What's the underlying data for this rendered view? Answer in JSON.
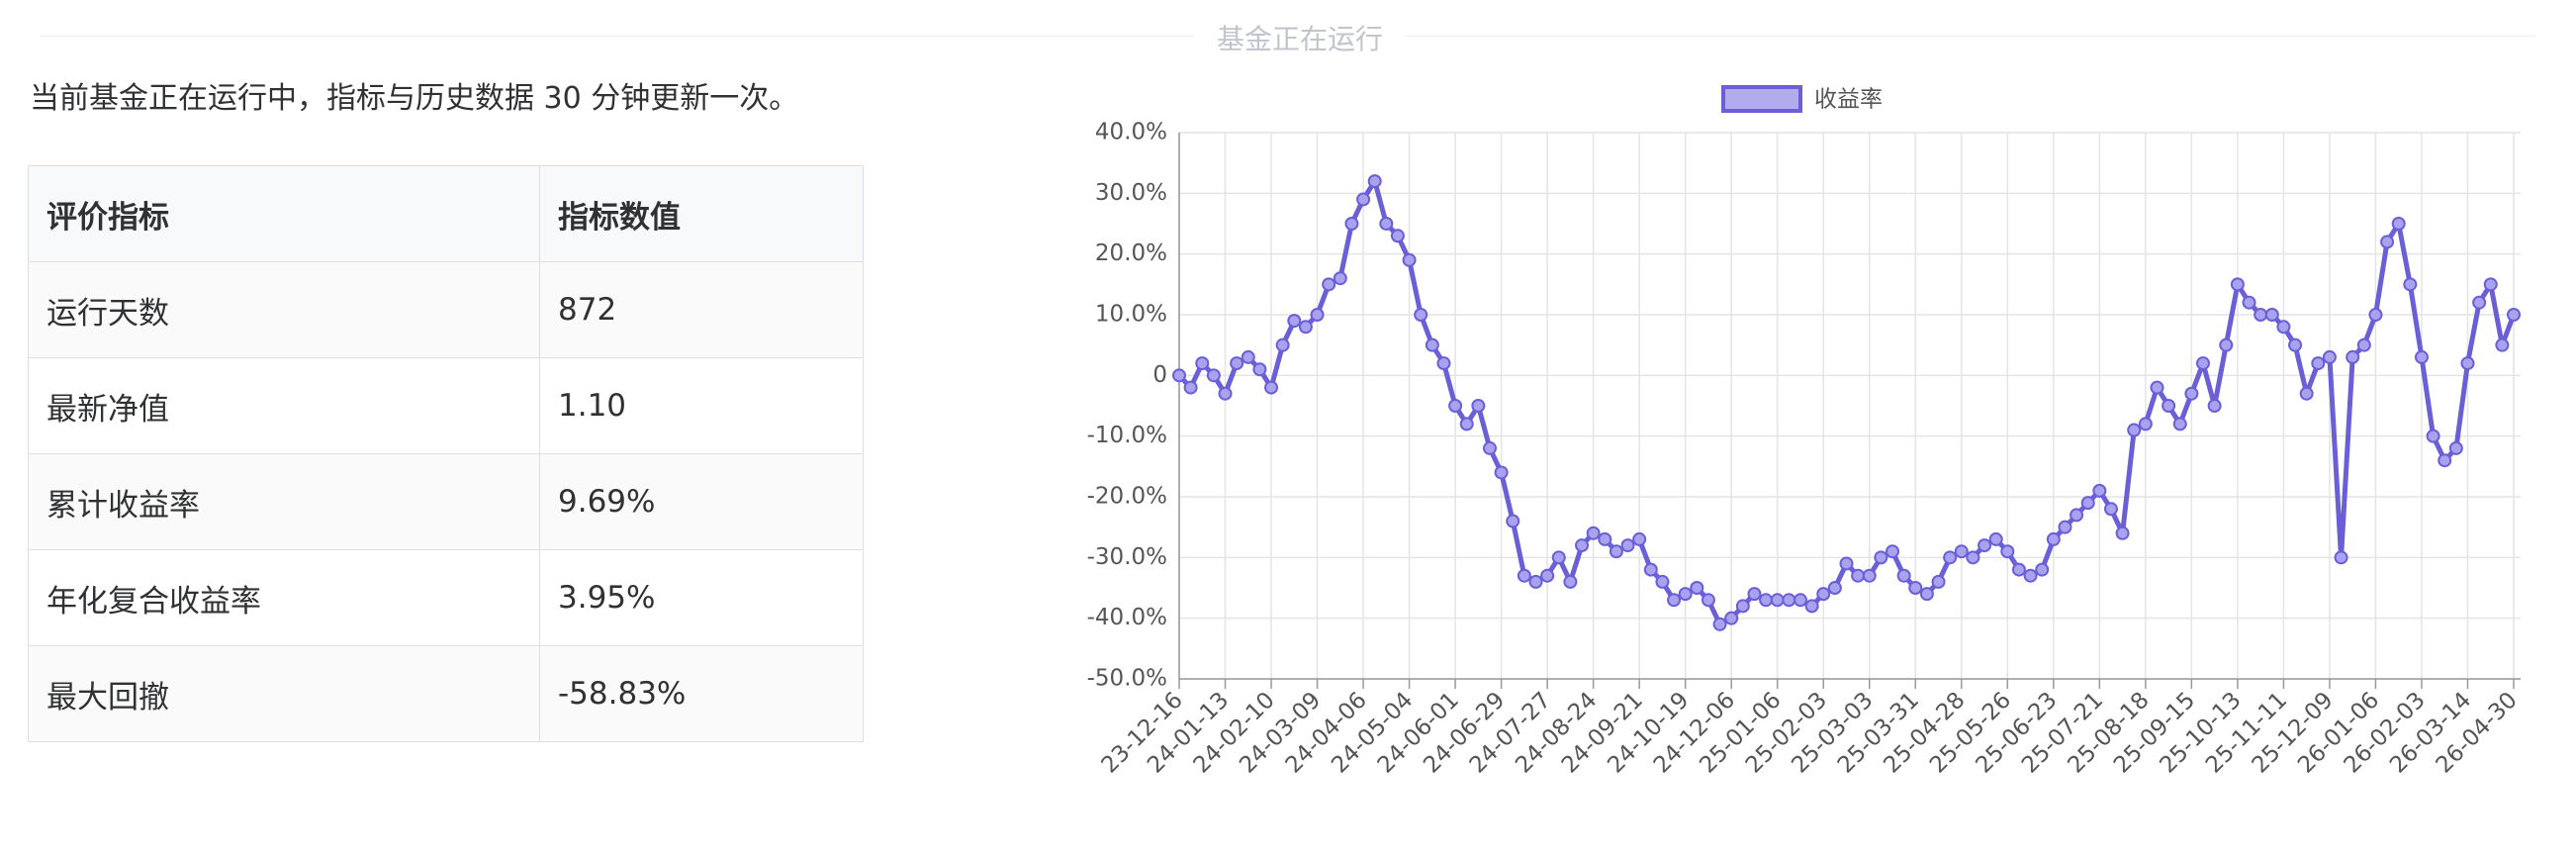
{
  "header": {
    "title": "基金正在运行"
  },
  "notice": "当前基金正在运行中，指标与历史数据 30 分钟更新一次。",
  "table": {
    "columns": [
      "评价指标",
      "指标数值"
    ],
    "rows": [
      [
        "运行天数",
        "872"
      ],
      [
        "最新净值",
        "1.10"
      ],
      [
        "累计收益率",
        "9.69%"
      ],
      [
        "年化复合收益率",
        "3.95%"
      ],
      [
        "最大回撤",
        "-58.83%"
      ]
    ]
  },
  "chart_data": {
    "type": "line",
    "legend": "top",
    "categories": [
      "23-12-16",
      null,
      null,
      null,
      "24-01-13",
      null,
      null,
      null,
      "24-02-10",
      null,
      null,
      null,
      "24-03-09",
      null,
      null,
      null,
      "24-04-06",
      null,
      null,
      null,
      "24-05-04",
      null,
      null,
      null,
      "24-06-01",
      null,
      null,
      null,
      "24-06-29",
      null,
      null,
      null,
      "24-07-27",
      null,
      null,
      null,
      "24-08-24",
      null,
      null,
      null,
      "24-09-21",
      null,
      null,
      null,
      "24-10-19",
      null,
      null,
      null,
      "24-12-06",
      null,
      null,
      null,
      "25-01-06",
      null,
      null,
      null,
      "25-02-03",
      null,
      null,
      null,
      "25-03-03",
      null,
      null,
      null,
      "25-03-31",
      null,
      null,
      null,
      "25-04-28",
      null,
      null,
      null,
      "25-05-26",
      null,
      null,
      null,
      "25-06-23",
      null,
      null,
      null,
      "25-07-21",
      null,
      null,
      null,
      "25-08-18",
      null,
      null,
      null,
      "25-09-15",
      null,
      null,
      null,
      "25-10-13",
      null,
      null,
      null,
      "25-11-11",
      null,
      null,
      null,
      "25-12-09",
      null,
      null,
      null,
      "26-01-06",
      null,
      null,
      null,
      "26-02-03",
      null,
      null,
      null,
      "26-03-14",
      null,
      null,
      null,
      "26-04-30"
    ],
    "series": [
      {
        "name": "收益率",
        "color": "#6b5fd8",
        "values": [
          0,
          -2,
          2,
          0,
          -3,
          2,
          3,
          1,
          -2,
          5,
          9,
          8,
          10,
          15,
          16,
          25,
          29,
          32,
          25,
          23,
          19,
          10,
          5,
          2,
          -5,
          -8,
          -5,
          -12,
          -16,
          -24,
          -33,
          -34,
          -33,
          -30,
          -34,
          -28,
          -26,
          -27,
          -29,
          -28,
          -27,
          -32,
          -34,
          -37,
          -36,
          -35,
          -37,
          -41,
          -40,
          -38,
          -36,
          -37,
          -37,
          -37,
          -37,
          -38,
          -36,
          -35,
          -31,
          -33,
          -33,
          -30,
          -29,
          -33,
          -35,
          -36,
          -34,
          -30,
          -29,
          -30,
          -28,
          -27,
          -29,
          -32,
          -33,
          -32,
          -27,
          -25,
          -23,
          -21,
          -19,
          -22,
          -26,
          -9,
          -8,
          -2,
          -5,
          -8,
          -3,
          2,
          -5,
          5,
          15,
          12,
          10,
          10,
          8,
          5,
          -3,
          2,
          3,
          -30,
          3,
          5,
          10,
          22,
          25,
          15,
          3,
          -10,
          -14,
          -12,
          2,
          12,
          15,
          5,
          10
        ]
      }
    ],
    "ylim": [
      -50,
      40
    ],
    "yticks": [
      {
        "value": -50,
        "label": "-50.0%"
      },
      {
        "value": -40,
        "label": "-40.0%"
      },
      {
        "value": -30,
        "label": "-30.0%"
      },
      {
        "value": -20,
        "label": "-20.0%"
      },
      {
        "value": -10,
        "label": "-10.0%"
      },
      0,
      {
        "value": 10,
        "label": "10.0%"
      },
      {
        "value": 20,
        "label": "20.0%"
      },
      {
        "value": 30,
        "label": "30.0%"
      },
      {
        "value": 40,
        "label": "40.0%"
      }
    ],
    "grid": true
  }
}
